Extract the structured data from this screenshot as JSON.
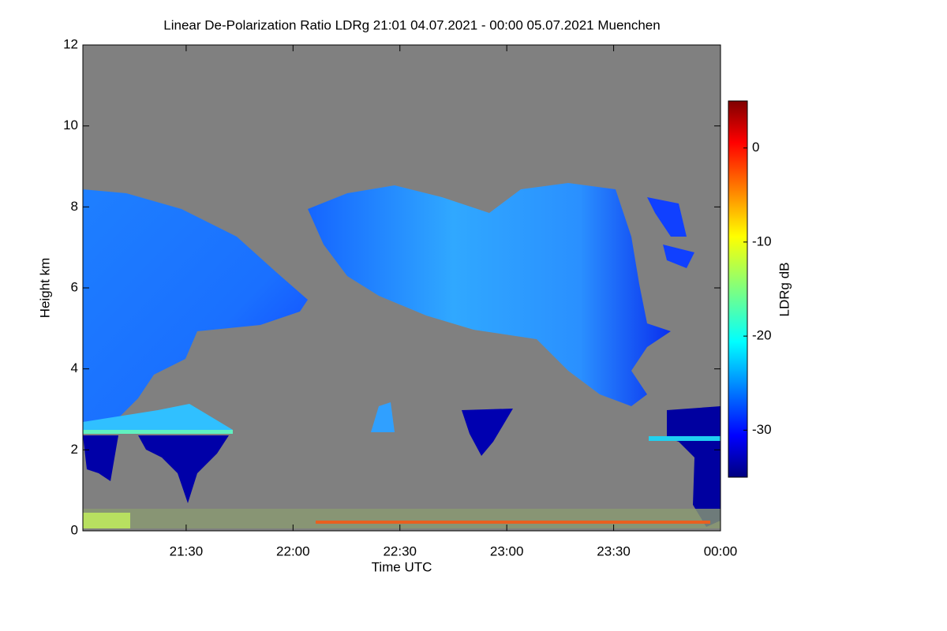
{
  "chart_data": {
    "type": "heatmap",
    "title": "Linear De-Polarization Ratio LDRg   21:01 04.07.2021 - 00:00 05.07.2021 Muenchen",
    "x_label": "Time UTC",
    "y_label": "Height km",
    "xlim": [
      21.0167,
      24
    ],
    "xticks": [
      {
        "value": 21.5,
        "label": "21:30"
      },
      {
        "value": 22,
        "label": "22:00"
      },
      {
        "value": 22.5,
        "label": "22:30"
      },
      {
        "value": 23,
        "label": "23:00"
      },
      {
        "value": 23.5,
        "label": "23:30"
      },
      {
        "value": 24,
        "label": "00:00"
      }
    ],
    "ylim": [
      0,
      12
    ],
    "yticks": [
      0,
      2,
      4,
      6,
      8,
      10,
      12
    ],
    "colorbar": {
      "label": "LDRg dB",
      "lim": [
        -35,
        5
      ],
      "ticks": [
        0,
        -10,
        -20,
        -30
      ],
      "colormap": "jet"
    }
  }
}
